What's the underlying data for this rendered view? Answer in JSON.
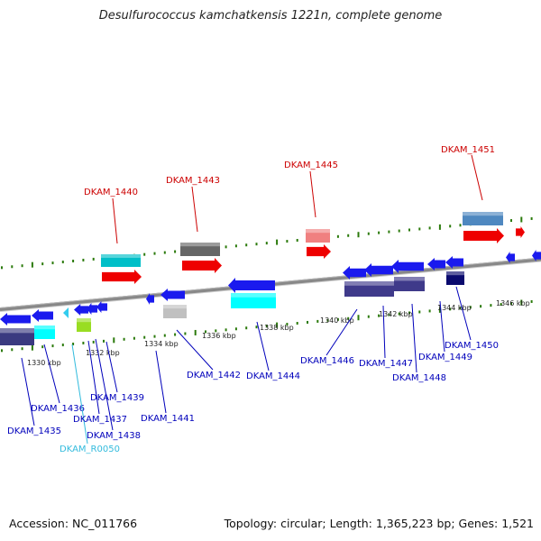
{
  "title": "Desulfurococcus kamchatkensis 1221n, complete genome",
  "footer": {
    "accession": "Accession: NC_011766",
    "summary": "Topology: circular; Length: 1,365,223 bp; Genes: 1,521"
  },
  "colors": {
    "forward_label": "#cc0000",
    "reverse_label": "#0000bb",
    "rna_label": "#33bbdd",
    "backbone": "#888888",
    "tick": "#2b7a0b"
  },
  "scale_labels": [
    "1330 kbp",
    "1332 kbp",
    "1334 kbp",
    "1336 kbp",
    "1338 kbp",
    "1340 kbp",
    "1342 kbp",
    "1344 kbp",
    "1346 kbp"
  ],
  "forward_genes": [
    "DKAM_1440",
    "DKAM_1443",
    "DKAM_1445",
    "DKAM_1451"
  ],
  "reverse_genes": [
    "DKAM_1435",
    "DKAM_1436",
    "DKAM_R0050",
    "DKAM_1437",
    "DKAM_1438",
    "DKAM_1439",
    "DKAM_1441",
    "DKAM_1442",
    "DKAM_1444",
    "DKAM_1446",
    "DKAM_1447",
    "DKAM_1448",
    "DKAM_1449",
    "DKAM_1450"
  ]
}
